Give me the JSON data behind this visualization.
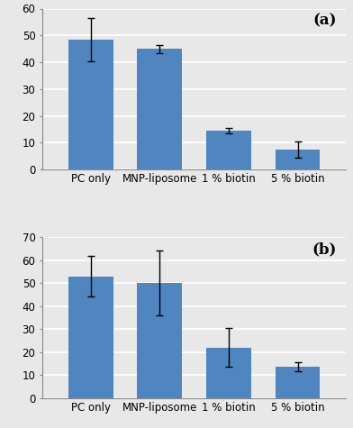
{
  "categories": [
    "PC only",
    "MNP-liposome",
    "1 % biotin",
    "5 % biotin"
  ],
  "chart_a": {
    "values": [
      48.5,
      45.0,
      14.5,
      7.5
    ],
    "errors": [
      8.0,
      1.5,
      1.0,
      3.0
    ],
    "ylim": [
      0,
      60
    ],
    "yticks": [
      0,
      10,
      20,
      30,
      40,
      50,
      60
    ],
    "label": "(a)"
  },
  "chart_b": {
    "values": [
      53.0,
      50.0,
      22.0,
      13.5
    ],
    "errors": [
      9.0,
      14.0,
      8.5,
      2.0
    ],
    "ylim": [
      0,
      70
    ],
    "yticks": [
      0,
      10,
      20,
      30,
      40,
      50,
      60,
      70
    ],
    "label": "(b)"
  },
  "bar_color": "#4f86c0",
  "bar_width": 0.65,
  "error_color": "black",
  "error_capsize": 3,
  "error_linewidth": 1.0,
  "tick_fontsize": 8.5,
  "label_fontsize": 12,
  "background_color": "#e8e8e8",
  "grid_color": "white",
  "grid_linewidth": 1.2
}
